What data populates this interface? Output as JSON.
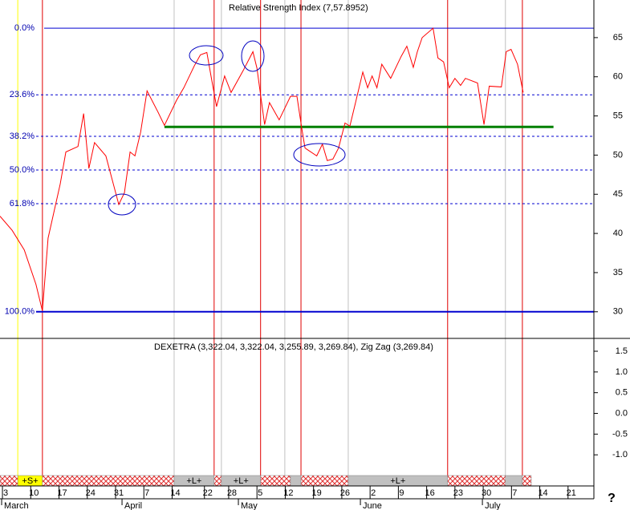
{
  "chart_data": {
    "type": "line",
    "title": "Relative Strength Index (7,57.8952)",
    "subpanel_title": "DEXETRA (3,322.04, 3,322.04, 3,255.89, 3,269.84), Zig Zag (3,269.84)",
    "help": "?",
    "xlim": [
      1.6,
      148.6
    ],
    "ylim": [
      26.6,
      69.8
    ],
    "yticks": [
      30,
      35,
      40,
      45,
      50,
      55,
      60,
      65
    ],
    "y2lim": [
      -1.48,
      1.81
    ],
    "y2ticks": [
      {
        "value": 1.5,
        "label": "1.5"
      },
      {
        "value": 1.0,
        "label": "1.0"
      },
      {
        "value": 0.5,
        "label": "0.5"
      },
      {
        "value": 0.0,
        "label": "0.0"
      },
      {
        "value": -0.5,
        "label": "-0.5"
      },
      {
        "value": -1.0,
        "label": "-1.0"
      }
    ],
    "xticks": [
      {
        "value": 3,
        "label": "3"
      },
      {
        "value": 10,
        "label": "10"
      },
      {
        "value": 17,
        "label": "17"
      },
      {
        "value": 24,
        "label": "24"
      },
      {
        "value": 31,
        "label": "31"
      },
      {
        "value": 38,
        "label": "7"
      },
      {
        "value": 45,
        "label": "14"
      },
      {
        "value": 53,
        "label": "22"
      },
      {
        "value": 59,
        "label": "28"
      },
      {
        "value": 66,
        "label": "5"
      },
      {
        "value": 73,
        "label": "12"
      },
      {
        "value": 80,
        "label": "19"
      },
      {
        "value": 87,
        "label": "26"
      },
      {
        "value": 94,
        "label": "2"
      },
      {
        "value": 101,
        "label": "9"
      },
      {
        "value": 108,
        "label": "16"
      },
      {
        "value": 115,
        "label": "23"
      },
      {
        "value": 122,
        "label": "30"
      },
      {
        "value": 129,
        "label": "7"
      },
      {
        "value": 136,
        "label": "14"
      },
      {
        "value": 143,
        "label": "21"
      }
    ],
    "months": [
      {
        "value": 2.6,
        "label": "March"
      },
      {
        "value": 32.4,
        "label": "April"
      },
      {
        "value": 61.2,
        "label": "May"
      },
      {
        "value": 91.4,
        "label": "June"
      },
      {
        "value": 121.6,
        "label": "July"
      }
    ],
    "fib_levels": [
      {
        "value": 66.2,
        "label": "0.0%"
      },
      {
        "value": 57.7,
        "label": "23.6%"
      },
      {
        "value": 52.4,
        "label": "38.2%"
      },
      {
        "value": 48.1,
        "label": "50.0%"
      },
      {
        "value": 43.8,
        "label": "61.8%"
      },
      {
        "value": 30,
        "label": "100.0%"
      }
    ],
    "support_line": {
      "value": 53.6,
      "start": 42.3,
      "end": 138.6,
      "color": "#008000"
    },
    "sell_lines": {
      "color": "#ffff00",
      "x": [
        6.0
      ]
    },
    "buy_lines": {
      "color": "#e00000",
      "x": [
        12.1,
        54.6,
        66.1,
        76.1,
        112.4,
        130.9
      ]
    },
    "exit_lines": {
      "color": "#c0c0c0",
      "x": [
        44.7,
        56.4,
        72.1,
        87.8,
        126.7
      ]
    },
    "bands": [
      {
        "start": 1.6,
        "end": 6.0,
        "fill": "hatch"
      },
      {
        "start": 6.0,
        "end": 12.1,
        "fill": "#ffff00",
        "label": "+S+"
      },
      {
        "start": 12.1,
        "end": 44.7,
        "fill": "hatch"
      },
      {
        "start": 44.7,
        "end": 54.6,
        "fill": "#c0c0c0",
        "label": "+L+"
      },
      {
        "start": 54.6,
        "end": 56.4,
        "fill": "hatch"
      },
      {
        "start": 56.4,
        "end": 66.1,
        "fill": "#c0c0c0",
        "label": "+L+"
      },
      {
        "start": 66.1,
        "end": 73.5,
        "fill": "hatch"
      },
      {
        "start": 73.5,
        "end": 76.1,
        "fill": "#c0c0c0"
      },
      {
        "start": 76.1,
        "end": 87.8,
        "fill": "hatch"
      },
      {
        "start": 87.8,
        "end": 112.4,
        "fill": "#c0c0c0",
        "label": "+L+"
      },
      {
        "start": 112.4,
        "end": 126.7,
        "fill": "hatch"
      },
      {
        "start": 126.7,
        "end": 130.9,
        "fill": "#c0c0c0"
      },
      {
        "start": 130.9,
        "end": 133.1,
        "fill": "hatch"
      }
    ],
    "series": [
      {
        "color": "#ff0000",
        "x": [
          1.6,
          4.6,
          7.6,
          10.5,
          12.1,
          13.5,
          16.5,
          17.9,
          20.9,
          22.3,
          23.6,
          25.0,
          27.8,
          31.0,
          32.4,
          33.8,
          35.0,
          36.4,
          38.0,
          40.7,
          42.3,
          45.3,
          47.1,
          49.7,
          51.2,
          52.8,
          54.0,
          55.2,
          57.2,
          58.8,
          61.8,
          64.2,
          65.2,
          67.1,
          68.3,
          70.7,
          73.5,
          75.1,
          76.3,
          77.1,
          80.0,
          81.4,
          82.6,
          84.0,
          85.4,
          87.0,
          88.2,
          89.6,
          91.4,
          92.6,
          93.7,
          94.9,
          96.1,
          98.3,
          100.9,
          102.3,
          103.9,
          104.9,
          106.1,
          108.8,
          110.0,
          111.4,
          112.8,
          114.2,
          115.6,
          116.8,
          119.8,
          121.4,
          122.7,
          125.7,
          126.9,
          128.1,
          129.7,
          131.1
        ],
        "values": [
          42.2,
          40.4,
          37.9,
          33.5,
          30.1,
          39.4,
          46.3,
          50.4,
          51.1,
          55.3,
          48.3,
          51.6,
          49.9,
          43.7,
          45.2,
          50.4,
          49.9,
          52.9,
          58.2,
          55.5,
          53.8,
          57.0,
          58.6,
          61.4,
          62.8,
          63.1,
          59.6,
          56.2,
          60.1,
          58.0,
          60.8,
          63.2,
          61.1,
          53.9,
          56.7,
          54.5,
          57.5,
          57.5,
          53.4,
          50.9,
          49.9,
          51.4,
          49.3,
          49.5,
          50.9,
          54.1,
          53.7,
          56.7,
          60.6,
          58.6,
          60.1,
          58.6,
          61.6,
          59.8,
          62.6,
          63.9,
          61.2,
          63.2,
          65.0,
          66.2,
          62.4,
          61.9,
          58.6,
          59.8,
          58.9,
          59.8,
          59.2,
          53.9,
          58.8,
          58.7,
          63.2,
          63.5,
          61.6,
          58.0
        ]
      }
    ]
  }
}
